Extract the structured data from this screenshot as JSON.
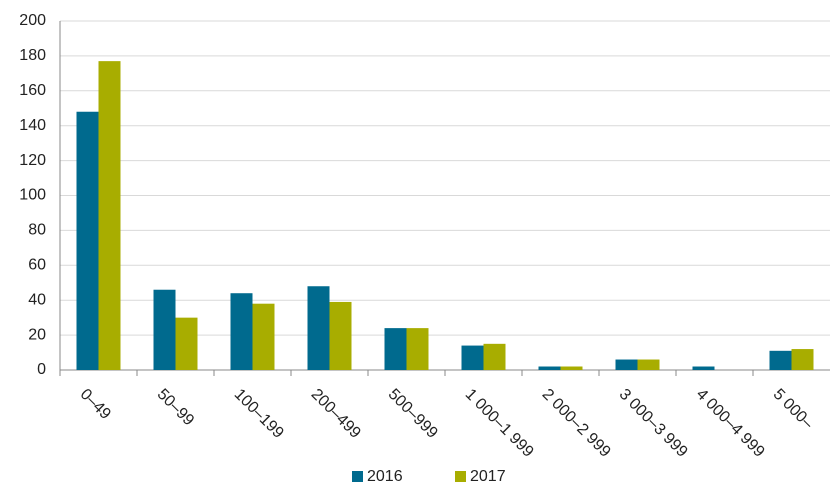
{
  "chart_data": {
    "type": "bar",
    "categories": [
      "0–49",
      "50–99",
      "100–199",
      "200–499",
      "500–999",
      "1 000–1 999",
      "2 000–2 999",
      "3 000–3 999",
      "4 000–4 999",
      "5 000–"
    ],
    "series": [
      {
        "name": "2016",
        "color": "#006a8e",
        "values": [
          148,
          46,
          44,
          48,
          24,
          14,
          2,
          6,
          2,
          11
        ]
      },
      {
        "name": "2017",
        "color": "#a8ad00",
        "values": [
          177,
          30,
          38,
          39,
          24,
          15,
          2,
          6,
          0,
          12
        ]
      }
    ],
    "ylim": [
      0,
      200
    ],
    "yticks": [
      0,
      20,
      40,
      60,
      80,
      100,
      120,
      140,
      160,
      180,
      200
    ],
    "grid": true
  }
}
